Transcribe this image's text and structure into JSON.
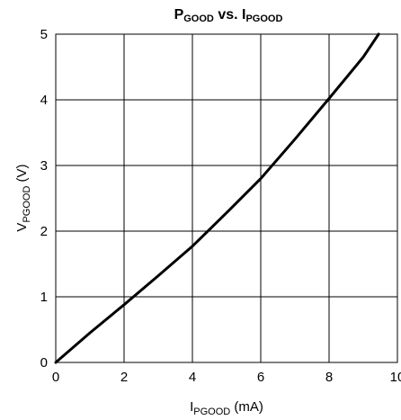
{
  "chart_data": {
    "type": "line",
    "title": {
      "main": "P",
      "main_sub": "GOOD",
      "mid": " vs. I",
      "mid_sub": "PGOOD"
    },
    "xlabel": {
      "main": "I",
      "sub": "PGOOD",
      "rest": " (mA)"
    },
    "ylabel": {
      "main": "V",
      "sub": "PGOOD",
      "rest": " (V)"
    },
    "xlim": [
      0,
      10
    ],
    "ylim": [
      0,
      5
    ],
    "xticks": [
      "0",
      "2",
      "4",
      "6",
      "8",
      "10"
    ],
    "yticks": [
      "0",
      "1",
      "2",
      "3",
      "4",
      "5"
    ],
    "grid": true,
    "series": [
      {
        "x": [
          0,
          1,
          2,
          3,
          4,
          5,
          6,
          7,
          8,
          9,
          9.45
        ],
        "y": [
          0,
          0.45,
          0.88,
          1.32,
          1.77,
          2.28,
          2.8,
          3.4,
          4.02,
          4.65,
          5.0
        ]
      }
    ]
  }
}
